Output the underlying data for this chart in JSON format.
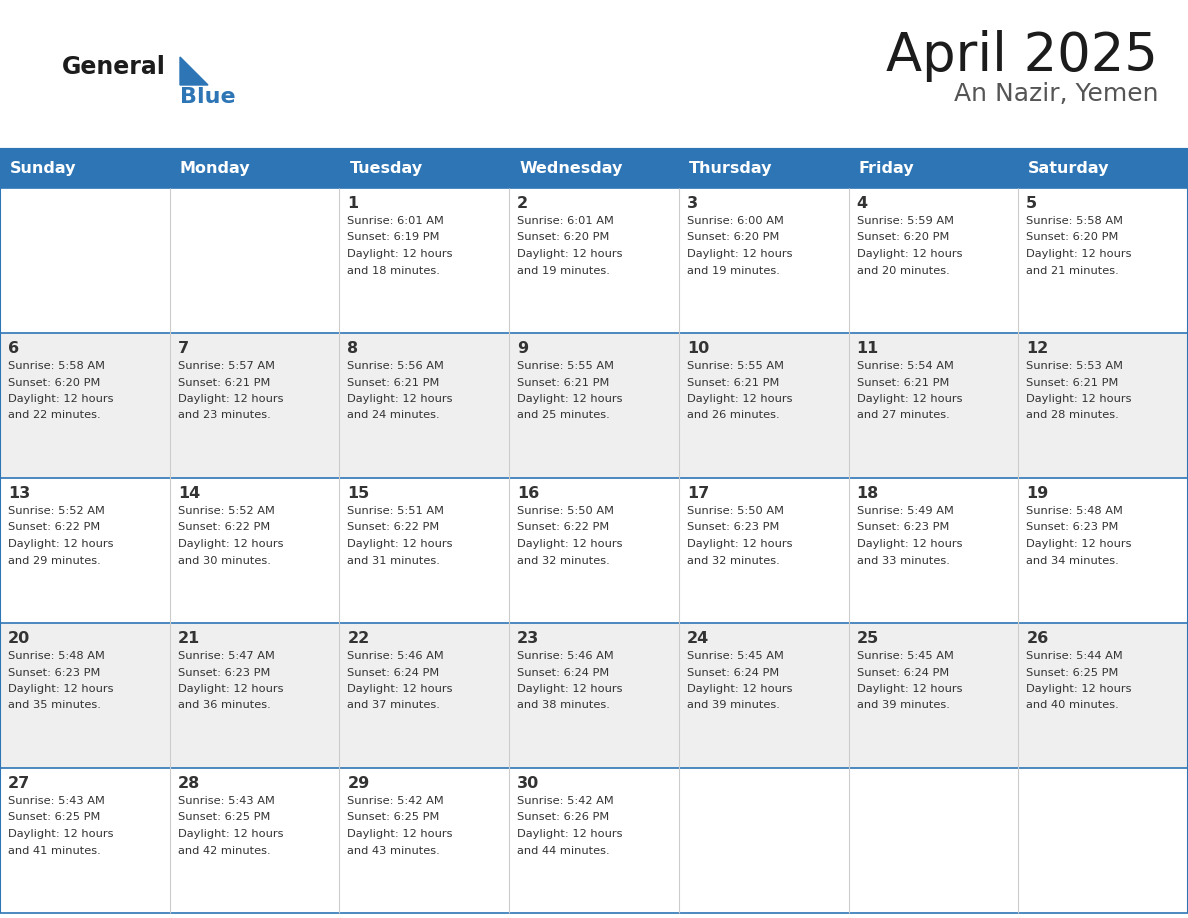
{
  "title": "April 2025",
  "subtitle": "An Nazir, Yemen",
  "header_color": "#2E75B6",
  "header_text_color": "#FFFFFF",
  "cell_bg_even": "#EFEFEF",
  "cell_bg_white": "#FFFFFF",
  "border_color": "#2E75B6",
  "day_names": [
    "Sunday",
    "Monday",
    "Tuesday",
    "Wednesday",
    "Thursday",
    "Friday",
    "Saturday"
  ],
  "text_color": "#333333",
  "days": [
    {
      "day": 1,
      "col": 2,
      "row": 0,
      "sunrise": "6:01 AM",
      "sunset": "6:19 PM",
      "daylight_min": "18"
    },
    {
      "day": 2,
      "col": 3,
      "row": 0,
      "sunrise": "6:01 AM",
      "sunset": "6:20 PM",
      "daylight_min": "19"
    },
    {
      "day": 3,
      "col": 4,
      "row": 0,
      "sunrise": "6:00 AM",
      "sunset": "6:20 PM",
      "daylight_min": "19"
    },
    {
      "day": 4,
      "col": 5,
      "row": 0,
      "sunrise": "5:59 AM",
      "sunset": "6:20 PM",
      "daylight_min": "20"
    },
    {
      "day": 5,
      "col": 6,
      "row": 0,
      "sunrise": "5:58 AM",
      "sunset": "6:20 PM",
      "daylight_min": "21"
    },
    {
      "day": 6,
      "col": 0,
      "row": 1,
      "sunrise": "5:58 AM",
      "sunset": "6:20 PM",
      "daylight_min": "22"
    },
    {
      "day": 7,
      "col": 1,
      "row": 1,
      "sunrise": "5:57 AM",
      "sunset": "6:21 PM",
      "daylight_min": "23"
    },
    {
      "day": 8,
      "col": 2,
      "row": 1,
      "sunrise": "5:56 AM",
      "sunset": "6:21 PM",
      "daylight_min": "24"
    },
    {
      "day": 9,
      "col": 3,
      "row": 1,
      "sunrise": "5:55 AM",
      "sunset": "6:21 PM",
      "daylight_min": "25"
    },
    {
      "day": 10,
      "col": 4,
      "row": 1,
      "sunrise": "5:55 AM",
      "sunset": "6:21 PM",
      "daylight_min": "26"
    },
    {
      "day": 11,
      "col": 5,
      "row": 1,
      "sunrise": "5:54 AM",
      "sunset": "6:21 PM",
      "daylight_min": "27"
    },
    {
      "day": 12,
      "col": 6,
      "row": 1,
      "sunrise": "5:53 AM",
      "sunset": "6:21 PM",
      "daylight_min": "28"
    },
    {
      "day": 13,
      "col": 0,
      "row": 2,
      "sunrise": "5:52 AM",
      "sunset": "6:22 PM",
      "daylight_min": "29"
    },
    {
      "day": 14,
      "col": 1,
      "row": 2,
      "sunrise": "5:52 AM",
      "sunset": "6:22 PM",
      "daylight_min": "30"
    },
    {
      "day": 15,
      "col": 2,
      "row": 2,
      "sunrise": "5:51 AM",
      "sunset": "6:22 PM",
      "daylight_min": "31"
    },
    {
      "day": 16,
      "col": 3,
      "row": 2,
      "sunrise": "5:50 AM",
      "sunset": "6:22 PM",
      "daylight_min": "32"
    },
    {
      "day": 17,
      "col": 4,
      "row": 2,
      "sunrise": "5:50 AM",
      "sunset": "6:23 PM",
      "daylight_min": "32"
    },
    {
      "day": 18,
      "col": 5,
      "row": 2,
      "sunrise": "5:49 AM",
      "sunset": "6:23 PM",
      "daylight_min": "33"
    },
    {
      "day": 19,
      "col": 6,
      "row": 2,
      "sunrise": "5:48 AM",
      "sunset": "6:23 PM",
      "daylight_min": "34"
    },
    {
      "day": 20,
      "col": 0,
      "row": 3,
      "sunrise": "5:48 AM",
      "sunset": "6:23 PM",
      "daylight_min": "35"
    },
    {
      "day": 21,
      "col": 1,
      "row": 3,
      "sunrise": "5:47 AM",
      "sunset": "6:23 PM",
      "daylight_min": "36"
    },
    {
      "day": 22,
      "col": 2,
      "row": 3,
      "sunrise": "5:46 AM",
      "sunset": "6:24 PM",
      "daylight_min": "37"
    },
    {
      "day": 23,
      "col": 3,
      "row": 3,
      "sunrise": "5:46 AM",
      "sunset": "6:24 PM",
      "daylight_min": "38"
    },
    {
      "day": 24,
      "col": 4,
      "row": 3,
      "sunrise": "5:45 AM",
      "sunset": "6:24 PM",
      "daylight_min": "39"
    },
    {
      "day": 25,
      "col": 5,
      "row": 3,
      "sunrise": "5:45 AM",
      "sunset": "6:24 PM",
      "daylight_min": "39"
    },
    {
      "day": 26,
      "col": 6,
      "row": 3,
      "sunrise": "5:44 AM",
      "sunset": "6:25 PM",
      "daylight_min": "40"
    },
    {
      "day": 27,
      "col": 0,
      "row": 4,
      "sunrise": "5:43 AM",
      "sunset": "6:25 PM",
      "daylight_min": "41"
    },
    {
      "day": 28,
      "col": 1,
      "row": 4,
      "sunrise": "5:43 AM",
      "sunset": "6:25 PM",
      "daylight_min": "42"
    },
    {
      "day": 29,
      "col": 2,
      "row": 4,
      "sunrise": "5:42 AM",
      "sunset": "6:25 PM",
      "daylight_min": "43"
    },
    {
      "day": 30,
      "col": 3,
      "row": 4,
      "sunrise": "5:42 AM",
      "sunset": "6:26 PM",
      "daylight_min": "44"
    }
  ]
}
